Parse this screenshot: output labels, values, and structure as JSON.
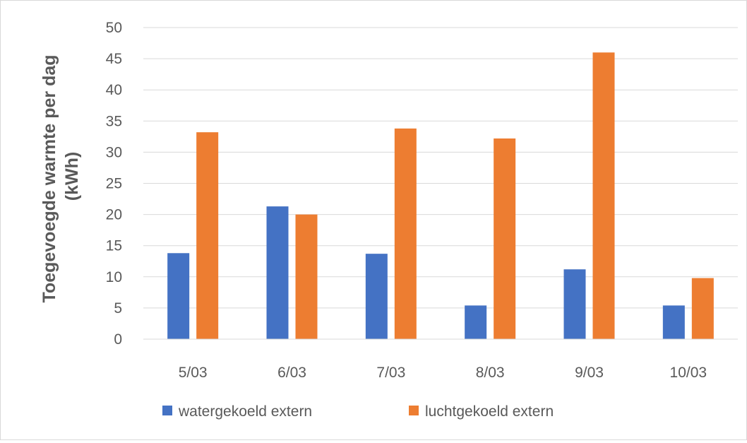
{
  "chart_data": {
    "type": "bar",
    "title": "",
    "xlabel": "",
    "ylabel_lines": [
      "Toegevoegde warmte per dag",
      "(kWh)"
    ],
    "categories": [
      "5/03",
      "6/03",
      "7/03",
      "8/03",
      "9/03",
      "10/03"
    ],
    "series": [
      {
        "name": "watergekoeld extern",
        "color": "#4472c4",
        "values": [
          13.8,
          21.3,
          13.7,
          5.4,
          11.2,
          5.4
        ]
      },
      {
        "name": "luchtgekoeld extern",
        "color": "#ed7d31",
        "values": [
          33.2,
          20.0,
          33.8,
          32.2,
          46.0,
          9.8
        ]
      }
    ],
    "ylim": [
      0,
      50
    ],
    "yticks": [
      0,
      5,
      10,
      15,
      20,
      25,
      30,
      35,
      40,
      45,
      50
    ],
    "grid": true,
    "legend_position": "bottom"
  }
}
